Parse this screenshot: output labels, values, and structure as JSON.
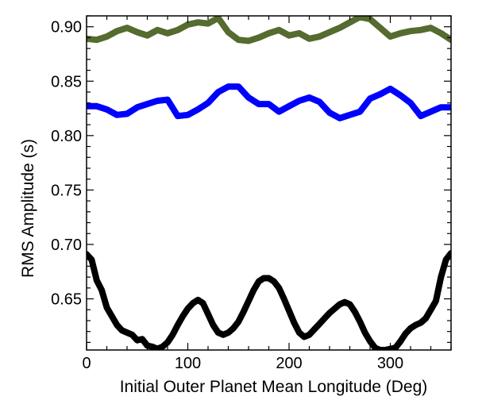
{
  "chart_data": {
    "type": "line",
    "title": "",
    "xlabel": "Initial Outer Planet Mean Longitude (Deg)",
    "ylabel": "RMS Amplitude (s)",
    "xlim": [
      0,
      360
    ],
    "ylim": [
      0.603,
      0.91
    ],
    "xticks": [
      0,
      100,
      200,
      300
    ],
    "xtick_labels": [
      "0",
      "100",
      "200",
      "300"
    ],
    "yticks": [
      0.65,
      0.7,
      0.75,
      0.8,
      0.85,
      0.9
    ],
    "ytick_labels": [
      "0.65",
      "0.70",
      "0.75",
      "0.80",
      "0.85",
      "0.90"
    ],
    "x_minor_step": 20,
    "y_minor_step": 0.01,
    "grid": false,
    "series": [
      {
        "name": "green",
        "color": "#556b2f",
        "x": [
          0,
          10,
          20,
          30,
          40,
          50,
          60,
          70,
          80,
          90,
          100,
          110,
          120,
          130,
          140,
          150,
          160,
          170,
          180,
          190,
          200,
          210,
          220,
          230,
          240,
          250,
          260,
          270,
          280,
          290,
          300,
          310,
          320,
          330,
          340,
          350,
          360
        ],
        "values": [
          0.889,
          0.888,
          0.891,
          0.896,
          0.899,
          0.895,
          0.892,
          0.897,
          0.894,
          0.897,
          0.902,
          0.904,
          0.903,
          0.908,
          0.895,
          0.888,
          0.887,
          0.89,
          0.894,
          0.897,
          0.892,
          0.894,
          0.889,
          0.891,
          0.895,
          0.899,
          0.904,
          0.909,
          0.907,
          0.899,
          0.891,
          0.894,
          0.896,
          0.897,
          0.899,
          0.894,
          0.888
        ]
      },
      {
        "name": "blue",
        "color": "#0000ff",
        "x": [
          0,
          10,
          20,
          30,
          40,
          50,
          60,
          70,
          80,
          90,
          100,
          110,
          120,
          130,
          140,
          150,
          160,
          170,
          180,
          190,
          200,
          210,
          220,
          230,
          240,
          250,
          260,
          270,
          280,
          290,
          300,
          310,
          320,
          330,
          340,
          350,
          360
        ],
        "values": [
          0.827,
          0.827,
          0.824,
          0.819,
          0.82,
          0.826,
          0.829,
          0.832,
          0.833,
          0.818,
          0.819,
          0.824,
          0.83,
          0.84,
          0.845,
          0.845,
          0.835,
          0.829,
          0.829,
          0.822,
          0.827,
          0.832,
          0.835,
          0.831,
          0.821,
          0.816,
          0.819,
          0.822,
          0.834,
          0.838,
          0.843,
          0.837,
          0.83,
          0.818,
          0.822,
          0.826,
          0.826
        ]
      },
      {
        "name": "black",
        "color": "#000000",
        "x": [
          0,
          5,
          10,
          15,
          20,
          25,
          30,
          35,
          40,
          45,
          50,
          55,
          60,
          65,
          70,
          75,
          80,
          85,
          90,
          95,
          100,
          105,
          110,
          115,
          120,
          125,
          130,
          135,
          140,
          145,
          150,
          155,
          160,
          165,
          170,
          175,
          180,
          185,
          190,
          195,
          200,
          205,
          210,
          215,
          220,
          225,
          230,
          235,
          240,
          245,
          250,
          255,
          260,
          265,
          270,
          275,
          280,
          285,
          290,
          295,
          300,
          305,
          310,
          315,
          320,
          325,
          330,
          335,
          340,
          345,
          350,
          355,
          360
        ],
        "values": [
          0.691,
          0.686,
          0.667,
          0.658,
          0.642,
          0.634,
          0.626,
          0.621,
          0.619,
          0.617,
          0.612,
          0.613,
          0.607,
          0.606,
          0.604,
          0.606,
          0.61,
          0.617,
          0.626,
          0.634,
          0.641,
          0.646,
          0.649,
          0.646,
          0.636,
          0.626,
          0.619,
          0.617,
          0.619,
          0.623,
          0.629,
          0.638,
          0.648,
          0.658,
          0.666,
          0.669,
          0.669,
          0.666,
          0.66,
          0.65,
          0.639,
          0.628,
          0.619,
          0.615,
          0.617,
          0.622,
          0.627,
          0.632,
          0.637,
          0.641,
          0.645,
          0.647,
          0.645,
          0.638,
          0.629,
          0.619,
          0.611,
          0.605,
          0.603,
          0.603,
          0.604,
          0.605,
          0.611,
          0.618,
          0.623,
          0.626,
          0.628,
          0.632,
          0.64,
          0.648,
          0.67,
          0.686,
          0.692
        ]
      }
    ]
  }
}
